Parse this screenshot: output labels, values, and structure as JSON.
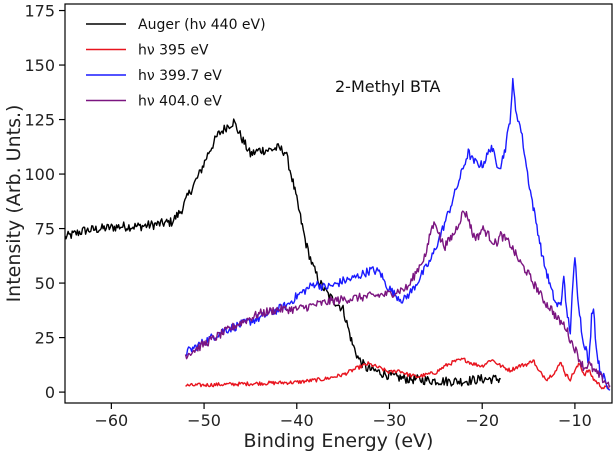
{
  "chart_data": {
    "type": "line",
    "title": "",
    "annotation": "2-Methyl BTA",
    "xlabel": "Binding Energy (eV)",
    "ylabel": "Intensity (Arb. Unts.)",
    "xlim": [
      -65,
      -6
    ],
    "ylim": [
      -5,
      178
    ],
    "xticks": [
      -60,
      -50,
      -40,
      -30,
      -20,
      -10
    ],
    "yticks": [
      0,
      25,
      50,
      75,
      100,
      125,
      150,
      175
    ],
    "grid": false,
    "legend_position": "top-left",
    "series": [
      {
        "name": "Auger (hν 440 eV)",
        "color": "#000000",
        "points": [
          [
            -65,
            71
          ],
          [
            -63,
            74
          ],
          [
            -61,
            75
          ],
          [
            -59,
            76
          ],
          [
            -57,
            76
          ],
          [
            -55,
            77
          ],
          [
            -53.5,
            78
          ],
          [
            -52.5,
            83
          ],
          [
            -51.5,
            92
          ],
          [
            -50.5,
            100
          ],
          [
            -49.5,
            110
          ],
          [
            -48.5,
            118
          ],
          [
            -47.5,
            122
          ],
          [
            -46.8,
            124
          ],
          [
            -46,
            117
          ],
          [
            -45,
            109
          ],
          [
            -44,
            111
          ],
          [
            -43,
            111
          ],
          [
            -42,
            112
          ],
          [
            -41.2,
            110
          ],
          [
            -40.5,
            98
          ],
          [
            -40,
            88
          ],
          [
            -39.5,
            78
          ],
          [
            -39,
            68
          ],
          [
            -38.3,
            58
          ],
          [
            -37.5,
            50
          ],
          [
            -36.5,
            44
          ],
          [
            -35.5,
            40
          ],
          [
            -35,
            38
          ],
          [
            -34.5,
            30
          ],
          [
            -34,
            22
          ],
          [
            -33.3,
            15
          ],
          [
            -32.5,
            11
          ],
          [
            -31,
            9
          ],
          [
            -29.5,
            7
          ],
          [
            -28,
            6
          ],
          [
            -26,
            5.5
          ],
          [
            -24,
            5
          ],
          [
            -22,
            5
          ],
          [
            -20,
            6
          ],
          [
            -18,
            6
          ]
        ]
      },
      {
        "name": "hν 395 eV",
        "color": "#e8141e",
        "points": [
          [
            -52,
            3
          ],
          [
            -48,
            3.5
          ],
          [
            -44,
            4
          ],
          [
            -40,
            4.5
          ],
          [
            -37,
            6
          ],
          [
            -35,
            8
          ],
          [
            -33.5,
            11
          ],
          [
            -32.3,
            13
          ],
          [
            -31,
            11
          ],
          [
            -30,
            9
          ],
          [
            -29,
            10
          ],
          [
            -28,
            8
          ],
          [
            -27,
            7
          ],
          [
            -25,
            9
          ],
          [
            -24,
            12
          ],
          [
            -23,
            14
          ],
          [
            -22,
            15
          ],
          [
            -21,
            13
          ],
          [
            -20,
            12
          ],
          [
            -19,
            15
          ],
          [
            -18,
            12
          ],
          [
            -17,
            10
          ],
          [
            -16,
            12
          ],
          [
            -15,
            13
          ],
          [
            -14.5,
            15
          ],
          [
            -14,
            10
          ],
          [
            -13,
            6
          ],
          [
            -12,
            10
          ],
          [
            -11.5,
            14
          ],
          [
            -11,
            8
          ],
          [
            -10.5,
            6
          ],
          [
            -10,
            10
          ],
          [
            -9.5,
            13
          ],
          [
            -9,
            8
          ],
          [
            -8.5,
            10
          ],
          [
            -8,
            6
          ],
          [
            -7.5,
            4
          ],
          [
            -7,
            2
          ],
          [
            -6.3,
            2
          ]
        ]
      },
      {
        "name": "hν 399.7 eV",
        "color": "#1a1aff",
        "points": [
          [
            -52,
            18
          ],
          [
            -50,
            23
          ],
          [
            -48,
            28
          ],
          [
            -46,
            31
          ],
          [
            -44,
            34
          ],
          [
            -42,
            38
          ],
          [
            -41,
            40
          ],
          [
            -40,
            44
          ],
          [
            -39,
            47
          ],
          [
            -38,
            50
          ],
          [
            -37,
            48
          ],
          [
            -36,
            49
          ],
          [
            -35,
            51
          ],
          [
            -34,
            52
          ],
          [
            -33,
            54
          ],
          [
            -32,
            56
          ],
          [
            -31,
            55
          ],
          [
            -30.5,
            50
          ],
          [
            -29.5,
            45
          ],
          [
            -28.5,
            42
          ],
          [
            -27.5,
            47
          ],
          [
            -26.5,
            54
          ],
          [
            -25.5,
            61
          ],
          [
            -24.5,
            72
          ],
          [
            -23.5,
            84
          ],
          [
            -22.5,
            97
          ],
          [
            -21.5,
            110
          ],
          [
            -21,
            106
          ],
          [
            -20,
            104
          ],
          [
            -19.5,
            108
          ],
          [
            -19,
            113
          ],
          [
            -18.5,
            105
          ],
          [
            -18,
            104
          ],
          [
            -17.5,
            112
          ],
          [
            -17,
            125
          ],
          [
            -16.7,
            142
          ],
          [
            -16.4,
            130
          ],
          [
            -15.8,
            120
          ],
          [
            -15,
            97
          ],
          [
            -14.5,
            85
          ],
          [
            -14,
            74
          ],
          [
            -13.5,
            62
          ],
          [
            -13,
            54
          ],
          [
            -12.5,
            46
          ],
          [
            -12,
            40
          ],
          [
            -11.5,
            40
          ],
          [
            -11.2,
            55
          ],
          [
            -11,
            40
          ],
          [
            -10.5,
            28
          ],
          [
            -10.2,
            50
          ],
          [
            -10,
            62
          ],
          [
            -9.7,
            45
          ],
          [
            -9.2,
            25
          ],
          [
            -8.8,
            20
          ],
          [
            -8.5,
            12
          ],
          [
            -8.2,
            35
          ],
          [
            -8,
            40
          ],
          [
            -7.7,
            20
          ],
          [
            -7.3,
            10
          ],
          [
            -7,
            8
          ],
          [
            -6.5,
            2
          ],
          [
            -6.2,
            1
          ]
        ]
      },
      {
        "name": "hν 404.0 eV",
        "color": "#7b1580",
        "points": [
          [
            -52,
            17
          ],
          [
            -50,
            22
          ],
          [
            -48,
            27
          ],
          [
            -46,
            32
          ],
          [
            -44,
            36
          ],
          [
            -42,
            38
          ],
          [
            -40,
            38
          ],
          [
            -38,
            40
          ],
          [
            -36,
            42
          ],
          [
            -34,
            43
          ],
          [
            -32,
            44
          ],
          [
            -30,
            45
          ],
          [
            -28,
            48
          ],
          [
            -27,
            56
          ],
          [
            -26,
            64
          ],
          [
            -25.5,
            75
          ],
          [
            -25,
            78
          ],
          [
            -24.5,
            70
          ],
          [
            -24,
            67
          ],
          [
            -23.5,
            70
          ],
          [
            -23,
            73
          ],
          [
            -22.5,
            78
          ],
          [
            -22,
            83
          ],
          [
            -21.5,
            80
          ],
          [
            -21,
            72
          ],
          [
            -20.5,
            71
          ],
          [
            -20,
            75
          ],
          [
            -19.5,
            73
          ],
          [
            -19,
            70
          ],
          [
            -18.5,
            68
          ],
          [
            -18,
            72
          ],
          [
            -17.5,
            70
          ],
          [
            -17,
            68
          ],
          [
            -16.5,
            64
          ],
          [
            -16,
            60
          ],
          [
            -15.5,
            57
          ],
          [
            -15,
            54
          ],
          [
            -14.5,
            50
          ],
          [
            -14,
            47
          ],
          [
            -13.5,
            43
          ],
          [
            -13,
            40
          ],
          [
            -12.5,
            38
          ],
          [
            -12,
            34
          ],
          [
            -11.5,
            32
          ],
          [
            -11,
            30
          ],
          [
            -10.5,
            24
          ],
          [
            -10,
            20
          ],
          [
            -9.5,
            15
          ],
          [
            -9,
            11
          ],
          [
            -8.5,
            13
          ],
          [
            -8,
            10
          ],
          [
            -7.5,
            8
          ],
          [
            -7,
            6
          ],
          [
            -6.5,
            4
          ],
          [
            -6.2,
            3
          ]
        ]
      }
    ]
  }
}
